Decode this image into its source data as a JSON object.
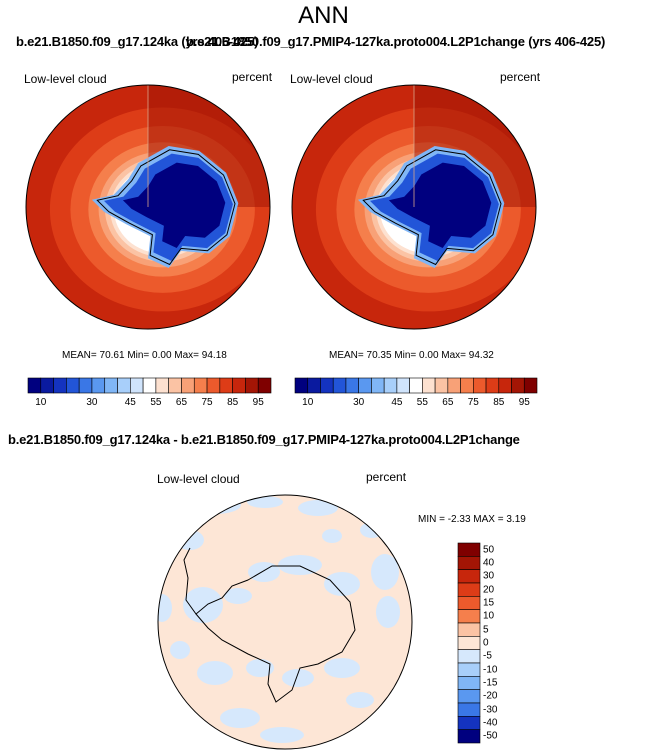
{
  "chart_data": [
    {
      "type": "heatmap",
      "title": "b.e21.B1850.f09_g17.124ka (yrs 406-425)",
      "variable": "Low-level cloud",
      "units": "percent",
      "stats": {
        "mean": "70.61",
        "min": "0.00",
        "max": "94.18"
      },
      "stats_label": "MEAN= 70.61  Min=  0.00  Max= 94.18",
      "colorbar": {
        "levels": [
          10,
          15,
          20,
          25,
          30,
          35,
          40,
          45,
          50,
          55,
          60,
          65,
          70,
          75,
          80,
          85,
          90,
          95
        ],
        "tick_labels": [
          "10",
          "30",
          "45",
          "55",
          "65",
          "75",
          "85",
          "95"
        ]
      }
    },
    {
      "type": "heatmap",
      "title": "b.e21.B1850.f09_g17.PMIP4-127ka.proto004.L2P1change (yrs 406-425)",
      "variable": "Low-level cloud",
      "units": "percent",
      "stats": {
        "mean": "70.35",
        "min": "0.00",
        "max": "94.32"
      },
      "stats_label": "MEAN= 70.35  Min=  0.00  Max= 94.32",
      "colorbar": {
        "levels": [
          10,
          15,
          20,
          25,
          30,
          35,
          40,
          45,
          50,
          55,
          60,
          65,
          70,
          75,
          80,
          85,
          90,
          95
        ],
        "tick_labels": [
          "10",
          "30",
          "45",
          "55",
          "65",
          "75",
          "85",
          "95"
        ]
      }
    },
    {
      "type": "heatmap",
      "title": "b.e21.B1850.f09_g17.124ka - b.e21.B1850.f09_g17.PMIP4-127ka.proto004.L2P1change",
      "variable": "Low-level cloud",
      "units": "percent",
      "stats": {
        "min": "-2.33",
        "max": "3.19"
      },
      "stats_label": "MIN = -2.33 MAX = 3.19",
      "colorbar": {
        "levels": [
          50,
          40,
          30,
          20,
          15,
          10,
          5,
          0,
          -5,
          -10,
          -15,
          -20,
          -30,
          -40,
          -50
        ],
        "tick_labels": [
          "50",
          "40",
          "30",
          "20",
          "15",
          "10",
          "5",
          "0",
          "-5",
          "-10",
          "-15",
          "-20",
          "-30",
          "-40",
          "-50"
        ]
      }
    }
  ],
  "header": {
    "title": "ANN"
  },
  "colors": {
    "abs_scale": [
      "#00007f",
      "#0a1a9f",
      "#1433bf",
      "#2255d8",
      "#3a77e6",
      "#5a98f0",
      "#80b6f6",
      "#a8cffa",
      "#d0e4fc",
      "#ffffff",
      "#fde1d0",
      "#fbc3a4",
      "#f8a177",
      "#f57f4c",
      "#ec5a2c",
      "#dd3c17",
      "#c7260c",
      "#a31505",
      "#7f0000"
    ],
    "diff_scale": [
      "#7f0000",
      "#a31505",
      "#c7260c",
      "#dd3c17",
      "#ec5a2c",
      "#f57f4c",
      "#fbc3a4",
      "#fde6d6",
      "#d6e8fc",
      "#a8cffa",
      "#80b6f6",
      "#5a98f0",
      "#3a77e6",
      "#1433bf",
      "#00007f"
    ]
  }
}
